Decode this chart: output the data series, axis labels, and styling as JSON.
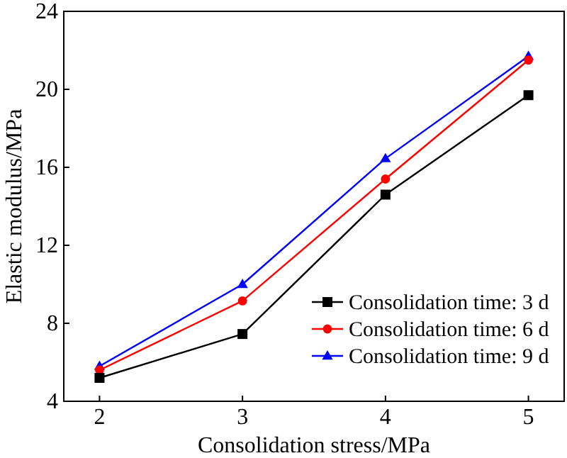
{
  "chart_data": {
    "type": "line",
    "xlabel": "Consolidation stress/MPa",
    "ylabel": "Elastic modulus/MPa",
    "x": [
      2,
      3,
      4,
      5
    ],
    "xlim": [
      1.75,
      5.25
    ],
    "xticks": [
      2,
      3,
      4,
      5
    ],
    "ylim": [
      4,
      24
    ],
    "yticks": [
      4,
      8,
      12,
      16,
      20,
      24
    ],
    "legend": "bottom right",
    "grid": false,
    "line_style": "solid",
    "series": [
      {
        "name": "Consolidation time: 3 d",
        "color": "#000000",
        "marker": "square",
        "values": [
          5.2,
          7.45,
          14.6,
          19.7
        ]
      },
      {
        "name": "Consolidation time: 6 d",
        "color": "#ff0000",
        "marker": "circle",
        "values": [
          5.6,
          9.15,
          15.4,
          21.5
        ]
      },
      {
        "name": "Consolidation time: 9 d",
        "color": "#0000ff",
        "marker": "triangle",
        "values": [
          5.8,
          10.0,
          16.45,
          21.7
        ]
      }
    ]
  }
}
